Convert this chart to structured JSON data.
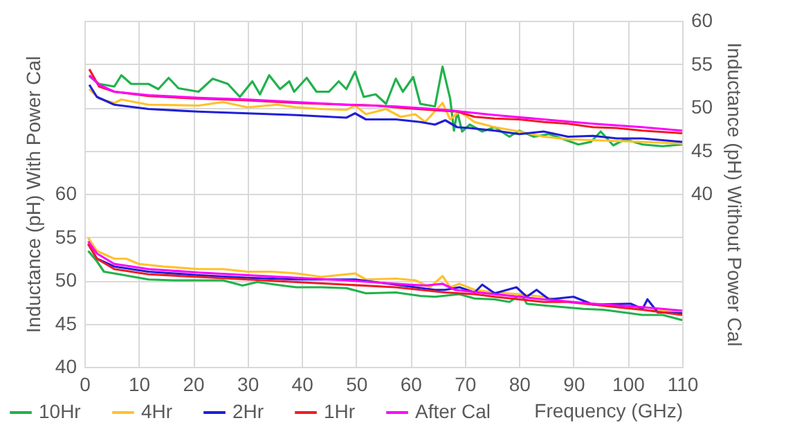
{
  "chart_data": {
    "type": "line",
    "xlabel": "Frequency (GHz)",
    "ylabel": "Inductance (pH) With Power Cal",
    "y2label": "Inductance (pH) Without Power Cal",
    "xlim": [
      0,
      110
    ],
    "xticks": [
      0,
      10,
      20,
      30,
      40,
      50,
      60,
      70,
      80,
      90,
      100,
      110
    ],
    "ylim": [
      40,
      80
    ],
    "yticks": [
      40,
      45,
      50,
      55,
      60
    ],
    "y2lim": [
      20,
      60
    ],
    "y2ticks": [
      40,
      45,
      50,
      55,
      60
    ],
    "grid": true,
    "legend": "bottom",
    "line_style": "solid",
    "marker": "none",
    "series": [
      {
        "name": "10Hr",
        "color": "#21b24b",
        "x": [
          0.7,
          2.3,
          3.6,
          6.4,
          9.1,
          11.8,
          16.4,
          21,
          25.5,
          29.1,
          31.8,
          36.4,
          39,
          43.6,
          48.2,
          51.8,
          57.3,
          61.8,
          64.5,
          69,
          71.8,
          75.5,
          78.2,
          80.4,
          81.4,
          84.5,
          88.2,
          91.8,
          95.5,
          99.1,
          102.7,
          106.4,
          110
        ],
        "values": [
          53.4,
          52.2,
          51.0,
          50.7,
          50.4,
          50.1,
          50.0,
          50.0,
          50.0,
          49.4,
          49.8,
          49.4,
          49.2,
          49.2,
          49.1,
          48.5,
          48.6,
          48.2,
          48.1,
          48.4,
          47.9,
          47.8,
          47.5,
          48.4,
          47.3,
          47.1,
          46.9,
          46.7,
          46.6,
          46.3,
          46.0,
          46.0,
          45.4
        ]
      },
      {
        "name": "4Hr",
        "color": "#ffc22b",
        "x": [
          0.7,
          2.3,
          5.5,
          7.7,
          10,
          14.5,
          21,
          25.5,
          30,
          34.5,
          39,
          43.6,
          49.8,
          51.8,
          57.3,
          60.9,
          63.6,
          65.9,
          67.3,
          69,
          71.8,
          75.5,
          80,
          84.5,
          89,
          93.6,
          98,
          102.7,
          110
        ],
        "values": [
          54.9,
          53.4,
          52.5,
          52.5,
          51.9,
          51.6,
          51.3,
          51.3,
          51.0,
          51.0,
          50.8,
          50.4,
          50.8,
          50.1,
          50.2,
          50.0,
          49.2,
          50.5,
          49.2,
          49.6,
          48.9,
          48.6,
          48.4,
          48.1,
          47.5,
          47.2,
          46.9,
          46.6,
          46.3
        ]
      },
      {
        "name": "2Hr",
        "color": "#1f1fd6",
        "x": [
          0.7,
          2.3,
          5.5,
          11.8,
          21,
          30,
          39,
          49.8,
          57.3,
          64.5,
          66.4,
          69,
          71.8,
          73.2,
          75.5,
          79.5,
          81.4,
          83.2,
          85.5,
          90,
          93.6,
          100.5,
          102.7,
          103.6,
          105.5,
          110
        ],
        "values": [
          54.2,
          52.5,
          51.6,
          51.0,
          50.6,
          50.3,
          50.1,
          50.1,
          49.5,
          48.9,
          48.9,
          49.2,
          48.6,
          49.5,
          48.5,
          49.2,
          48.1,
          48.9,
          47.8,
          48.1,
          47.2,
          47.3,
          46.7,
          47.8,
          46.3,
          46.2
        ]
      },
      {
        "name": "1Hr",
        "color": "#ee1c24",
        "x": [
          0.7,
          2.3,
          5.5,
          11.8,
          21,
          30,
          39,
          48.2,
          57.3,
          66.4,
          71.8,
          75.5,
          80,
          84.5,
          89,
          93.6,
          98,
          102.7,
          110
        ],
        "values": [
          54.2,
          52.5,
          51.3,
          50.7,
          50.4,
          50.1,
          49.8,
          49.5,
          49.2,
          48.6,
          48.4,
          48.1,
          47.8,
          47.5,
          47.5,
          47.2,
          46.9,
          46.6,
          46.0
        ]
      },
      {
        "name": "After Cal",
        "color": "#ff00ff",
        "x": [
          0.7,
          2.3,
          5.5,
          11.8,
          21,
          30,
          39,
          48.2,
          57.3,
          62.7,
          65.9,
          68.2,
          75.5,
          84.5,
          93.6,
          102.7,
          110
        ],
        "values": [
          54.5,
          53.1,
          51.9,
          51.3,
          50.9,
          50.6,
          50.3,
          50.0,
          49.6,
          49.4,
          49.6,
          48.9,
          48.4,
          47.8,
          47.3,
          46.9,
          46.5
        ]
      },
      {
        "color": "#21b24b",
        "axis": "y2",
        "x": [
          0.9,
          2.7,
          5.5,
          6.8,
          8.6,
          11.8,
          13.6,
          15.5,
          17.3,
          21,
          23.6,
          26.4,
          28.6,
          30.9,
          32.3,
          34,
          36,
          37.7,
          38.6,
          40.9,
          42.7,
          45,
          46.8,
          48.2,
          49.8,
          51.4,
          53.6,
          55.5,
          57.3,
          58.6,
          60.5,
          61.8,
          64.5,
          65.9,
          67.3,
          68,
          68.6,
          69.5,
          70.9,
          73.2,
          75.5,
          78.2,
          80,
          82.7,
          85.5,
          88.2,
          90.9,
          93.2,
          95,
          97.3,
          99.5,
          102.7,
          106.4,
          110
        ],
        "values": [
          53.6,
          52.7,
          52.4,
          53.7,
          52.7,
          52.7,
          52.1,
          53.4,
          52.2,
          51.8,
          53.3,
          52.7,
          51.2,
          53.0,
          51.5,
          53.7,
          52.1,
          53.0,
          51.8,
          53.4,
          51.8,
          51.8,
          53.0,
          52.1,
          54.1,
          51.2,
          51.5,
          50.4,
          53.3,
          51.8,
          53.5,
          50.4,
          50.1,
          54.7,
          51.0,
          47.3,
          49.5,
          47.2,
          48.0,
          47.2,
          47.7,
          46.6,
          47.3,
          46.6,
          46.9,
          46.3,
          45.7,
          46.0,
          47.2,
          45.6,
          46.3,
          45.7,
          45.5,
          45.7
        ]
      },
      {
        "color": "#ffc22b",
        "axis": "y2",
        "x": [
          0.9,
          2.7,
          5.5,
          6.8,
          11.8,
          21,
          25.5,
          30,
          35.5,
          39,
          43.6,
          48.2,
          49.8,
          51.8,
          55.5,
          58.2,
          60.9,
          62.7,
          65.9,
          67.3,
          69,
          71.8,
          75.5,
          80,
          84.5,
          89,
          93.6,
          98,
          102.7,
          110
        ],
        "values": [
          52.1,
          51.0,
          50.5,
          50.9,
          50.3,
          50.2,
          50.6,
          50.0,
          50.3,
          50.0,
          49.8,
          49.7,
          50.2,
          49.2,
          49.8,
          48.9,
          49.2,
          48.3,
          50.5,
          48.6,
          49.5,
          48.3,
          47.7,
          47.2,
          46.6,
          46.3,
          46.2,
          46.1,
          46.0,
          45.8
        ]
      },
      {
        "color": "#1f1fd6",
        "axis": "y2",
        "x": [
          0.9,
          2.3,
          5.5,
          11.8,
          21,
          30,
          39,
          48.2,
          49.8,
          51.8,
          57.3,
          61.8,
          64.5,
          66.4,
          68.6,
          70.9,
          75.5,
          80,
          84.5,
          89,
          93.6,
          98,
          102.7,
          110
        ],
        "values": [
          52.6,
          51.2,
          50.3,
          49.8,
          49.5,
          49.3,
          49.1,
          48.8,
          49.3,
          48.6,
          48.6,
          48.3,
          48.0,
          48.5,
          47.7,
          47.6,
          47.3,
          46.9,
          47.2,
          46.6,
          46.7,
          46.4,
          46.4,
          46.0
        ]
      },
      {
        "color": "#ee1c24",
        "axis": "y2",
        "x": [
          0.9,
          2.7,
          5.5,
          11.8,
          21,
          30,
          39,
          48.2,
          53.6,
          59,
          63.6,
          68.6,
          71.8,
          75.5,
          80,
          84.5,
          89,
          93.6,
          98,
          102.7,
          110
        ],
        "values": [
          54.4,
          52.4,
          51.8,
          51.3,
          51.0,
          50.8,
          50.5,
          50.3,
          50.2,
          49.9,
          49.7,
          49.5,
          48.9,
          48.7,
          48.6,
          48.3,
          48.1,
          47.7,
          47.6,
          47.3,
          47.0
        ]
      },
      {
        "color": "#ff00ff",
        "axis": "y2",
        "x": [
          0.9,
          2.7,
          5.5,
          11.8,
          21,
          30,
          39,
          48.2,
          57.3,
          66.4,
          75.5,
          84.5,
          93.6,
          102.7,
          110
        ],
        "values": [
          53.7,
          52.6,
          51.8,
          51.4,
          51.1,
          50.9,
          50.6,
          50.3,
          50.1,
          49.7,
          49.1,
          48.6,
          48.1,
          47.7,
          47.3
        ]
      }
    ]
  }
}
